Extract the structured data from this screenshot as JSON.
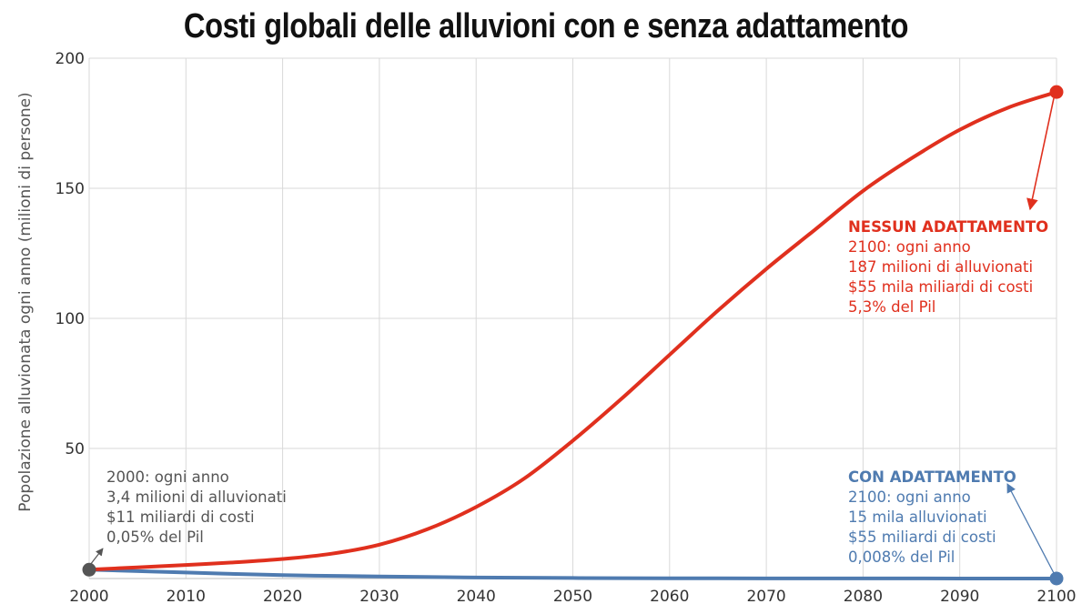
{
  "chart_data": {
    "type": "line",
    "title": "Costi globali delle alluvioni con e senza adattamento",
    "xlabel": "",
    "ylabel": "Popolazione alluvionata ogni anno (milioni di persone)",
    "xlim": [
      2000,
      2100
    ],
    "ylim": [
      0,
      200
    ],
    "xticks": [
      "2000",
      "2010",
      "2020",
      "2030",
      "2040",
      "2050",
      "2060",
      "2070",
      "2080",
      "2090",
      "2100"
    ],
    "yticks": [
      "50",
      "100",
      "150",
      "200"
    ],
    "grid": true,
    "series": [
      {
        "name": "Nessun adattamento",
        "color": "#e0301e",
        "x": [
          2000,
          2005,
          2010,
          2015,
          2020,
          2025,
          2030,
          2035,
          2040,
          2045,
          2050,
          2055,
          2060,
          2065,
          2070,
          2075,
          2080,
          2085,
          2090,
          2095,
          2100
        ],
        "y": [
          3.4,
          4.3,
          5.2,
          6.2,
          7.5,
          9.5,
          13,
          19,
          27.5,
          38.5,
          53,
          69,
          86,
          103,
          119,
          134,
          149,
          161.5,
          172.5,
          181,
          187
        ]
      },
      {
        "name": "Con adattamento",
        "color": "#4f7bb0",
        "x": [
          2000,
          2010,
          2020,
          2030,
          2040,
          2050,
          2060,
          2070,
          2080,
          2090,
          2100
        ],
        "y": [
          3.4,
          2.3,
          1.3,
          0.8,
          0.4,
          0.2,
          0.1,
          0.06,
          0.03,
          0.02,
          0.015
        ]
      }
    ],
    "annotations": {
      "start": {
        "color": "#555555",
        "lines": [
          "2000: ogni anno",
          "3,4 milioni di alluvionati",
          "$11 miliardi di costi",
          "0,05% del Pil"
        ]
      },
      "no_adapt": {
        "color": "#e0301e",
        "heading": "NESSUN ADATTAMENTO",
        "lines": [
          "2100: ogni anno",
          "187 milioni  di alluvionati",
          "$55 mila miliardi di costi",
          "5,3% del Pil"
        ]
      },
      "adapt": {
        "color": "#4f7bb0",
        "heading": "CON ADATTAMENTO",
        "lines": [
          "2100: ogni anno",
          "15 mila  alluvionati",
          "$55 miliardi di costi",
          "0,008% del Pil"
        ]
      }
    }
  }
}
